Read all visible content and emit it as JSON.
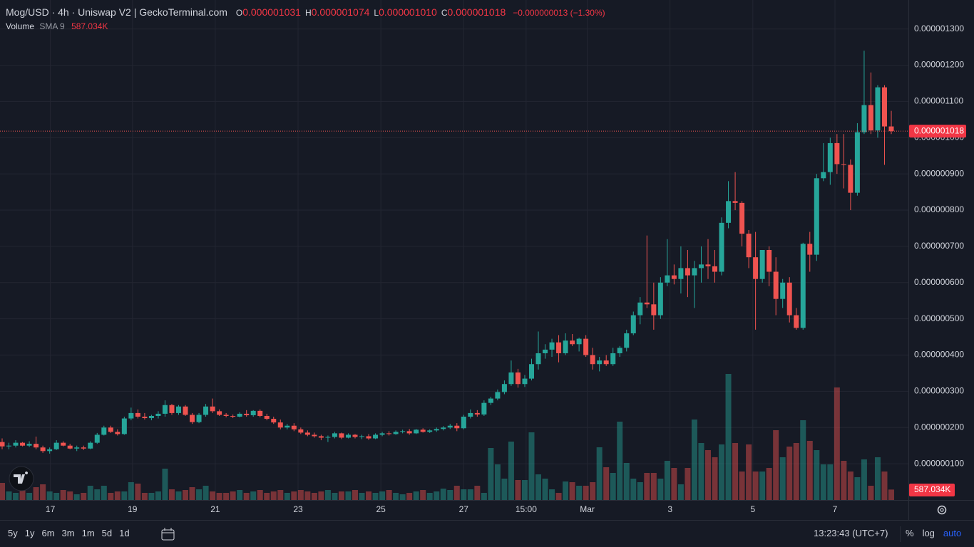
{
  "chart_data": {
    "type": "candlestick",
    "title": "Mog/USD · 4h · Uniswap V2 | GeckoTerminal.com",
    "legend": [
      {
        "key": "O",
        "value": "0.000001031"
      },
      {
        "key": "H",
        "value": "0.000001074"
      },
      {
        "key": "L",
        "value": "0.000001010"
      },
      {
        "key": "C",
        "value": "0.000001018"
      }
    ],
    "change": "−0.000000013 (−1.30%)",
    "volume_title": "Volume",
    "volume_indicator": "SMA 9",
    "volume_label": "587.034K",
    "up_color": "#26a69a",
    "down_color": "#ef5350",
    "grid": true,
    "ylim": [
      0,
      1.38e-06
    ],
    "yticks": [
      {
        "value": 1e-07,
        "label": "0.000000100"
      },
      {
        "value": 2e-07,
        "label": "0.000000200"
      },
      {
        "value": 3e-07,
        "label": "0.000000300"
      },
      {
        "value": 4e-07,
        "label": "0.000000400"
      },
      {
        "value": 5e-07,
        "label": "0.000000500"
      },
      {
        "value": 6e-07,
        "label": "0.000000600"
      },
      {
        "value": 7e-07,
        "label": "0.000000700"
      },
      {
        "value": 8e-07,
        "label": "0.000000800"
      },
      {
        "value": 9e-07,
        "label": "0.000000900"
      },
      {
        "value": 1e-06,
        "label": "0.000001000"
      },
      {
        "value": 1.1e-06,
        "label": "0.000001100"
      },
      {
        "value": 1.2e-06,
        "label": "0.000001200"
      },
      {
        "value": 1.3e-06,
        "label": "0.000001300"
      }
    ],
    "xticks": [
      {
        "value": 7.1,
        "label": "17"
      },
      {
        "value": 19.2,
        "label": "19"
      },
      {
        "value": 31.4,
        "label": "21"
      },
      {
        "value": 43.6,
        "label": "23"
      },
      {
        "value": 55.8,
        "label": "25"
      },
      {
        "value": 68,
        "label": "27"
      },
      {
        "value": 77.2,
        "label": "15:00"
      },
      {
        "value": 86.2,
        "label": "Mar"
      },
      {
        "value": 98.4,
        "label": "3"
      },
      {
        "value": 110.6,
        "label": "5"
      },
      {
        "value": 122.7,
        "label": "7"
      }
    ],
    "vlim": [
      0,
      8000000
    ],
    "open": [
      1.6e-07,
      1.48e-07,
      1.5e-07,
      1.58e-07,
      1.5e-07,
      1.55e-07,
      1.45e-07,
      1.35e-07,
      1.4e-07,
      1.58e-07,
      1.5e-07,
      1.42e-07,
      1.45e-07,
      1.42e-07,
      1.58e-07,
      1.8e-07,
      2e-07,
      1.88e-07,
      1.82e-07,
      2.25e-07,
      2.4e-07,
      2.3e-07,
      2.26e-07,
      2.32e-07,
      2.38e-07,
      2.62e-07,
      2.4e-07,
      2.58e-07,
      2.35e-07,
      2.15e-07,
      2.35e-07,
      2.58e-07,
      2.45e-07,
      2.35e-07,
      2.32e-07,
      2.3e-07,
      2.38e-07,
      2.34e-07,
      2.46e-07,
      2.32e-07,
      2.24e-07,
      2.14e-07,
      2e-07,
      2.05e-07,
      1.95e-07,
      1.86e-07,
      1.8e-07,
      1.76e-07,
      1.72e-07,
      1.74e-07,
      1.84e-07,
      1.72e-07,
      1.8e-07,
      1.74e-07,
      1.76e-07,
      1.7e-07,
      1.8e-07,
      1.84e-07,
      1.82e-07,
      1.88e-07,
      1.9e-07,
      1.84e-07,
      1.94e-07,
      1.88e-07,
      1.92e-07,
      1.96e-07,
      2e-07,
      2.05e-07,
      1.98e-07,
      2.3e-07,
      2.4e-07,
      2.36e-07,
      2.68e-07,
      2.8e-07,
      2.98e-07,
      3.2e-07,
      3.52e-07,
      3.2e-07,
      3.35e-07,
      3.75e-07,
      4.05e-07,
      4.15e-07,
      4.35e-07,
      4.05e-07,
      4.4e-07,
      4.3e-07,
      4.45e-07,
      4e-07,
      3.75e-07,
      3.85e-07,
      3.75e-07,
      4.05e-07,
      4.2e-07,
      4.6e-07,
      5.1e-07,
      5.45e-07,
      5.4e-07,
      5.1e-07,
      6e-07,
      6.2e-07,
      6.1e-07,
      6.4e-07,
      6.2e-07,
      6.4e-07,
      6.5e-07,
      6.45e-07,
      6.3e-07,
      7.65e-07,
      8.25e-07,
      8.2e-07,
      7.35e-07,
      6.7e-07,
      6.1e-07,
      6.9e-07,
      6.3e-07,
      5.55e-07,
      6e-07,
      5.1e-07,
      4.75e-07,
      7.07e-07,
      6.77e-07,
      8.88e-07,
      9.05e-07,
      9.85e-07,
      9.27e-07,
      9.25e-07,
      8.48e-07,
      1.015e-06,
      1.09e-06,
      1.02e-06,
      1.139e-06,
      1.031e-06
    ],
    "high": [
      1.7e-07,
      1.58e-07,
      1.65e-07,
      1.6e-07,
      1.62e-07,
      1.75e-07,
      1.5e-07,
      1.45e-07,
      1.65e-07,
      1.62e-07,
      1.55e-07,
      1.5e-07,
      1.5e-07,
      1.62e-07,
      1.85e-07,
      2.05e-07,
      2.05e-07,
      1.95e-07,
      2.3e-07,
      2.55e-07,
      2.5e-07,
      2.4e-07,
      2.35e-07,
      2.45e-07,
      2.75e-07,
      2.65e-07,
      2.62e-07,
      2.62e-07,
      2.4e-07,
      2.4e-07,
      2.65e-07,
      2.8e-07,
      2.5e-07,
      2.4e-07,
      2.36e-07,
      2.42e-07,
      2.48e-07,
      2.48e-07,
      2.5e-07,
      2.38e-07,
      2.3e-07,
      2.22e-07,
      2.1e-07,
      2.12e-07,
      2e-07,
      1.92e-07,
      1.86e-07,
      1.8e-07,
      1.78e-07,
      1.88e-07,
      1.86e-07,
      1.84e-07,
      1.82e-07,
      1.8e-07,
      1.82e-07,
      1.84e-07,
      1.88e-07,
      1.9e-07,
      1.92e-07,
      1.94e-07,
      1.96e-07,
      1.96e-07,
      1.98e-07,
      1.95e-07,
      2e-07,
      2.04e-07,
      2.1e-07,
      2.12e-07,
      2.35e-07,
      2.5e-07,
      2.48e-07,
      2.75e-07,
      2.85e-07,
      3.05e-07,
      3.3e-07,
      3.85e-07,
      3.62e-07,
      3.45e-07,
      3.9e-07,
      4.65e-07,
      4.3e-07,
      4.45e-07,
      4.55e-07,
      4.6e-07,
      4.58e-07,
      4.48e-07,
      4.55e-07,
      4.2e-07,
      3.95e-07,
      4e-07,
      4.2e-07,
      4.25e-07,
      4.7e-07,
      5.2e-07,
      5.6e-07,
      7.3e-07,
      6e-07,
      6.15e-07,
      7.2e-07,
      6.5e-07,
      7e-07,
      6.9e-07,
      6.6e-07,
      7e-07,
      7.2e-07,
      6.9e-07,
      7.8e-07,
      8.8e-07,
      9.05e-07,
      8.25e-07,
      7.45e-07,
      7.4e-07,
      6.9e-07,
      7e-07,
      6.7e-07,
      6.1e-07,
      6.15e-07,
      5.3e-07,
      7.1e-07,
      7.4e-07,
      9e-07,
      9.85e-07,
      1e-06,
      1.01e-06,
      1.01e-06,
      9.4e-07,
      1.04e-06,
      1.24e-06,
      1.18e-06,
      1.145e-06,
      1.145e-06,
      1.074e-06
    ],
    "low": [
      1.4e-07,
      1.4e-07,
      1.45e-07,
      1.48e-07,
      1.46e-07,
      1.4e-07,
      1.3e-07,
      1.28e-07,
      1.38e-07,
      1.48e-07,
      1.4e-07,
      1.35e-07,
      1.38e-07,
      1.4e-07,
      1.55e-07,
      1.78e-07,
      1.85e-07,
      1.78e-07,
      1.8e-07,
      2.2e-07,
      2.25e-07,
      2.22e-07,
      2.2e-07,
      2.25e-07,
      2.3e-07,
      2.35e-07,
      2.35e-07,
      2.32e-07,
      2.1e-07,
      2.12e-07,
      2.3e-07,
      2.4e-07,
      2.32e-07,
      2.28e-07,
      2.26e-07,
      2.28e-07,
      2.3e-07,
      2.3e-07,
      2.28e-07,
      2.2e-07,
      2.1e-07,
      1.95e-07,
      1.95e-07,
      1.9e-07,
      1.82e-07,
      1.76e-07,
      1.72e-07,
      1.65e-07,
      1.6e-07,
      1.7e-07,
      1.68e-07,
      1.7e-07,
      1.7e-07,
      1.68e-07,
      1.66e-07,
      1.68e-07,
      1.76e-07,
      1.78e-07,
      1.8e-07,
      1.84e-07,
      1.8e-07,
      1.82e-07,
      1.86e-07,
      1.85e-07,
      1.88e-07,
      1.92e-07,
      1.96e-07,
      1.9e-07,
      1.95e-07,
      2.25e-07,
      2.3e-07,
      2.32e-07,
      2.62e-07,
      2.75e-07,
      2.92e-07,
      3.15e-07,
      3.1e-07,
      3.12e-07,
      3.3e-07,
      3.6e-07,
      3.9e-07,
      3.95e-07,
      3.8e-07,
      4e-07,
      4.25e-07,
      4.1e-07,
      3.95e-07,
      3.6e-07,
      3.55e-07,
      3.7e-07,
      3.7e-07,
      3.95e-07,
      4.1e-07,
      4.55e-07,
      4.85e-07,
      5.3e-07,
      4.7e-07,
      5e-07,
      5.9e-07,
      5.95e-07,
      5.7e-07,
      5.6e-07,
      5.3e-07,
      6e-07,
      6.1e-07,
      6e-07,
      6.2e-07,
      7.5e-07,
      8e-07,
      7e-07,
      6.4e-07,
      4.7e-07,
      6e-07,
      5.9e-07,
      5.1e-07,
      5.3e-07,
      4.9e-07,
      4.7e-07,
      4.7e-07,
      6.3e-07,
      6.6e-07,
      8.8e-07,
      8.7e-07,
      9e-07,
      8.6e-07,
      8e-07,
      8.4e-07,
      1.01e-06,
      1.01e-06,
      1e-06,
      9.25e-07,
      1.01e-06
    ],
    "close": [
      1.48e-07,
      1.5e-07,
      1.58e-07,
      1.5e-07,
      1.55e-07,
      1.45e-07,
      1.35e-07,
      1.4e-07,
      1.58e-07,
      1.5e-07,
      1.42e-07,
      1.45e-07,
      1.42e-07,
      1.58e-07,
      1.8e-07,
      2e-07,
      1.88e-07,
      1.82e-07,
      2.25e-07,
      2.4e-07,
      2.3e-07,
      2.26e-07,
      2.32e-07,
      2.38e-07,
      2.62e-07,
      2.4e-07,
      2.58e-07,
      2.35e-07,
      2.15e-07,
      2.35e-07,
      2.58e-07,
      2.45e-07,
      2.35e-07,
      2.32e-07,
      2.3e-07,
      2.38e-07,
      2.34e-07,
      2.46e-07,
      2.32e-07,
      2.24e-07,
      2.14e-07,
      2e-07,
      2.05e-07,
      1.95e-07,
      1.86e-07,
      1.8e-07,
      1.76e-07,
      1.72e-07,
      1.74e-07,
      1.84e-07,
      1.72e-07,
      1.8e-07,
      1.74e-07,
      1.76e-07,
      1.7e-07,
      1.8e-07,
      1.84e-07,
      1.82e-07,
      1.88e-07,
      1.9e-07,
      1.84e-07,
      1.94e-07,
      1.88e-07,
      1.92e-07,
      1.96e-07,
      2e-07,
      2.05e-07,
      1.98e-07,
      2.3e-07,
      2.4e-07,
      2.36e-07,
      2.68e-07,
      2.8e-07,
      2.98e-07,
      3.2e-07,
      3.52e-07,
      3.2e-07,
      3.35e-07,
      3.75e-07,
      4.05e-07,
      4.15e-07,
      4.35e-07,
      4.05e-07,
      4.4e-07,
      4.3e-07,
      4.45e-07,
      4e-07,
      3.75e-07,
      3.85e-07,
      3.75e-07,
      4.05e-07,
      4.2e-07,
      4.6e-07,
      5.1e-07,
      5.45e-07,
      5.4e-07,
      5.1e-07,
      6e-07,
      6.2e-07,
      6.1e-07,
      6.4e-07,
      6.2e-07,
      6.4e-07,
      6.5e-07,
      6.45e-07,
      6.3e-07,
      7.65e-07,
      8.25e-07,
      8.2e-07,
      7.35e-07,
      6.7e-07,
      6.1e-07,
      6.9e-07,
      6.3e-07,
      5.55e-07,
      6e-07,
      5.1e-07,
      4.75e-07,
      7.07e-07,
      6.77e-07,
      8.88e-07,
      9.05e-07,
      9.85e-07,
      9.27e-07,
      9.25e-07,
      8.48e-07,
      1.015e-06,
      1.09e-06,
      1.02e-06,
      1.139e-06,
      1.031e-06,
      1.018e-06
    ],
    "volume": [
      960000.0,
      480000.0,
      400000.0,
      560000.0,
      400000.0,
      720000.0,
      880000.0,
      480000.0,
      400000.0,
      560000.0,
      480000.0,
      320000.0,
      400000.0,
      800000.0,
      600000.0,
      800000.0,
      400000.0,
      480000.0,
      480000.0,
      1000000.0,
      920000.0,
      400000.0,
      400000.0,
      480000.0,
      1760000.0,
      600000.0,
      480000.0,
      560000.0,
      720000.0,
      600000.0,
      800000.0,
      480000.0,
      400000.0,
      400000.0,
      480000.0,
      560000.0,
      400000.0,
      480000.0,
      560000.0,
      400000.0,
      480000.0,
      560000.0,
      400000.0,
      480000.0,
      560000.0,
      480000.0,
      400000.0,
      480000.0,
      560000.0,
      400000.0,
      480000.0,
      480000.0,
      560000.0,
      400000.0,
      480000.0,
      400000.0,
      480000.0,
      560000.0,
      400000.0,
      320000.0,
      400000.0,
      480000.0,
      560000.0,
      400000.0,
      480000.0,
      640000.0,
      560000.0,
      800000.0,
      600000.0,
      600000.0,
      800000.0,
      400000.0,
      2920000.0,
      2000000.0,
      1200000.0,
      3280000.0,
      1120000.0,
      1120000.0,
      3800000.0,
      1440000.0,
      1200000.0,
      600000.0,
      400000.0,
      1040000.0,
      1000000.0,
      800000.0,
      800000.0,
      1000000.0,
      2960000.0,
      1840000.0,
      1520000.0,
      4400000.0,
      2080000.0,
      1200000.0,
      1000000.0,
      1520000.0,
      1520000.0,
      1200000.0,
      2200000.0,
      1800000.0,
      880000.0,
      1800000.0,
      4520000.0,
      3200000.0,
      2800000.0,
      2400000.0,
      3120000.0,
      7080000.0,
      3200000.0,
      1600000.0,
      3120000.0,
      1600000.0,
      1600000.0,
      1800000.0,
      3920000.0,
      2400000.0,
      3000000.0,
      3200000.0,
      4480000.0,
      3320000.0,
      2800000.0,
      2000000.0,
      2000000.0,
      6320000.0,
      2200000.0,
      1600000.0,
      1280000.0,
      2280000.0,
      800000.0,
      2400000.0,
      1600000.0,
      587034
    ],
    "ranges": [
      "5y",
      "1y",
      "6m",
      "3m",
      "1m",
      "5d",
      "1d"
    ],
    "clock": "13:23:43 (UTC+7)",
    "scale_buttons": [
      "%",
      "log",
      "auto"
    ]
  }
}
